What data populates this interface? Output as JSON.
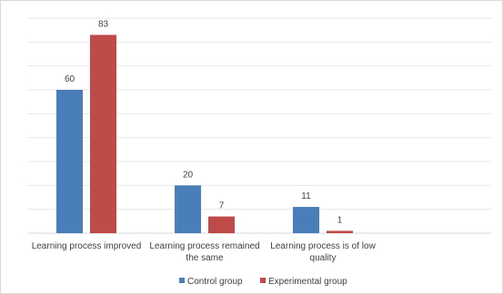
{
  "chart_data": {
    "type": "bar",
    "categories": [
      [
        "Learning process improved"
      ],
      [
        "Learning process remained",
        "the same"
      ],
      [
        "Learning process is of low",
        "quality"
      ]
    ],
    "series": [
      {
        "name": "Control group",
        "values": [
          60,
          20,
          11
        ],
        "color": "#4a7ebb"
      },
      {
        "name": "Experimental group",
        "values": [
          83,
          7,
          1
        ],
        "color": "#be4b48"
      }
    ],
    "ylim": [
      0,
      90
    ],
    "grid": true,
    "legend": "bottom"
  }
}
